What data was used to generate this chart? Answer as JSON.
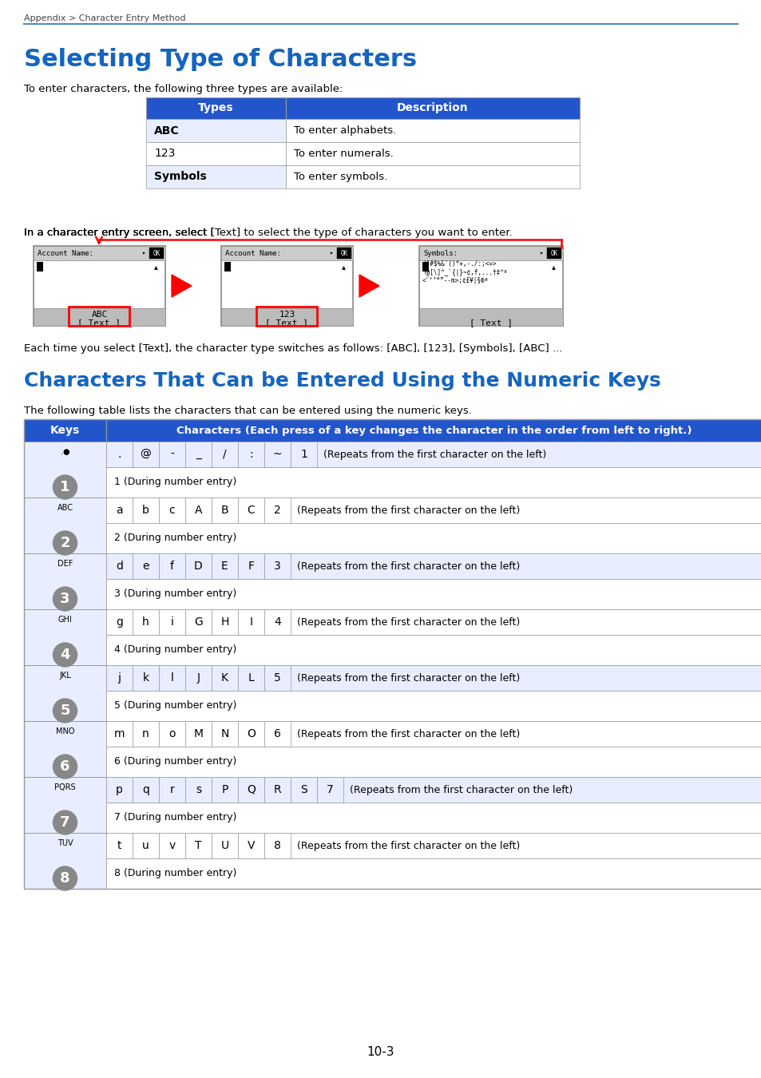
{
  "page_header": "Appendix > Character Entry Method",
  "title1": "Selecting Type of Characters",
  "title1_color": "#1464C0",
  "intro_text": "To enter characters, the following three types are available:",
  "types_table_rows": [
    [
      "ABC",
      "To enter alphabets.",
      true
    ],
    [
      "123",
      "To enter numerals.",
      false
    ],
    [
      "Symbols",
      "To enter symbols.",
      true
    ]
  ],
  "mid_text1": "In a character entry screen, select [",
  "mid_text_bold": "Text",
  "mid_text2": "] to select the type of characters you want to enter.",
  "each_time_text": "Each time you select [Text], the character type switches as follows: [ABC], [123], [Symbols], [ABC] ...",
  "title2": "Characters That Can be Entered Using the Numeric Keys",
  "title2_color": "#1464C0",
  "table2_intro": "The following table lists the characters that can be entered using the numeric keys.",
  "keys_table_header_col2": "Characters (Each press of a key changes the character in the order from left to right.)",
  "header_bg": "#2255CC",
  "header_fg": "#FFFFFF",
  "alt_row_bg": "#E8EEFF",
  "white_bg": "#FFFFFF",
  "table_border": "#999999",
  "key_circle_bg": "#888888",
  "page_number": "10-3",
  "blue_line_color": "#5588CC",
  "row_configs": [
    {
      "num": "1",
      "sub": "",
      "dot": ".●",
      "chars": [
        ".",
        "@",
        "-",
        "_",
        "/",
        ":",
        "~",
        "1"
      ],
      "desc": "(Repeats from the first character on the left)",
      "entry": "1 (During number entry)"
    },
    {
      "num": "2",
      "sub": "ABC",
      "dot": "",
      "chars": [
        "a",
        "b",
        "c",
        "A",
        "B",
        "C",
        "2"
      ],
      "desc": "(Repeats from the first character on the left)",
      "entry": "2 (During number entry)"
    },
    {
      "num": "3",
      "sub": "DEF",
      "dot": "",
      "chars": [
        "d",
        "e",
        "f",
        "D",
        "E",
        "F",
        "3"
      ],
      "desc": "(Repeats from the first character on the left)",
      "entry": "3 (During number entry)"
    },
    {
      "num": "4",
      "sub": "GHI",
      "dot": "",
      "chars": [
        "g",
        "h",
        "i",
        "G",
        "H",
        "I",
        "4"
      ],
      "desc": "(Repeats from the first character on the left)",
      "entry": "4 (During number entry)"
    },
    {
      "num": "5",
      "sub": "JKL",
      "dot": "",
      "chars": [
        "j",
        "k",
        "l",
        "J",
        "K",
        "L",
        "5"
      ],
      "desc": "(Repeats from the first character on the left)",
      "entry": "5 (During number entry)"
    },
    {
      "num": "6",
      "sub": "MNO",
      "dot": "",
      "chars": [
        "m",
        "n",
        "o",
        "M",
        "N",
        "O",
        "6"
      ],
      "desc": "(Repeats from the first character on the left)",
      "entry": "6 (During number entry)"
    },
    {
      "num": "7",
      "sub": "PQRS",
      "dot": "",
      "chars": [
        "p",
        "q",
        "r",
        "s",
        "P",
        "Q",
        "R",
        "S",
        "7"
      ],
      "desc": "(Repeats from the first character on the left)",
      "entry": "7 (During number entry)"
    },
    {
      "num": "8",
      "sub": "TUV",
      "dot": "",
      "chars": [
        "t",
        "u",
        "v",
        "T",
        "U",
        "V",
        "8"
      ],
      "desc": "(Repeats from the first character on the left)",
      "entry": "8 (During number entry)"
    }
  ]
}
